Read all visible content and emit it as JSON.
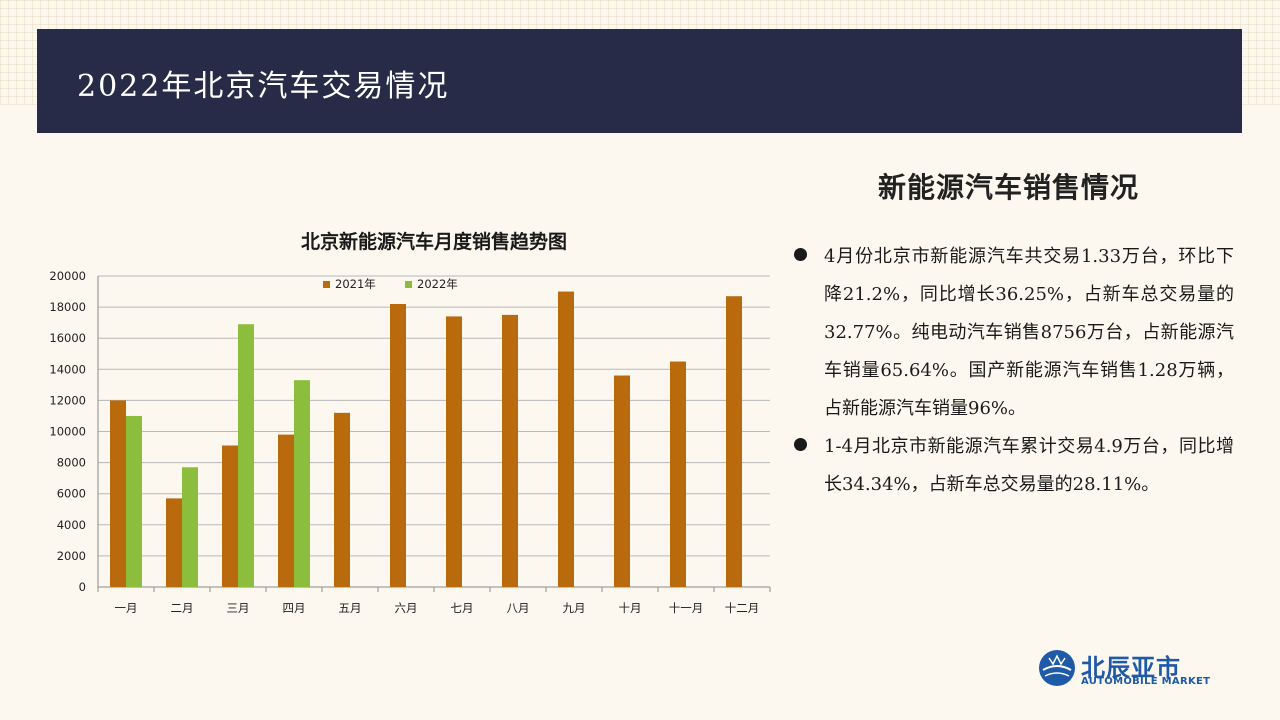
{
  "header": {
    "title": "2022年北京汽车交易情况"
  },
  "panel": {
    "title": "新能源汽车销售情况",
    "bullets": [
      "4月份北京市新能源汽车共交易1.33万台，环比下降21.2%，同比增长36.25%，占新车总交易量的32.77%。纯电动汽车销售8756万台，占新能源汽车销量65.64%。国产新能源汽车销售1.28万辆，占新能源汽车销量96%。",
      "1-4月北京市新能源汽车累计交易4.9万台，同比增长34.34%，占新车总交易量的28.11%。"
    ]
  },
  "logo": {
    "name": "北辰亚市",
    "subtitle": "AUTOMOBILE MARKET",
    "icon": "globe-car-icon"
  },
  "chart_data": {
    "type": "bar",
    "title": "北京新能源汽车月度销售趋势图",
    "categories": [
      "一月",
      "二月",
      "三月",
      "四月",
      "五月",
      "六月",
      "七月",
      "八月",
      "九月",
      "十月",
      "十一月",
      "十二月"
    ],
    "series": [
      {
        "name": "2021年",
        "color": "#b86a0d",
        "values": [
          12000,
          5700,
          9100,
          9800,
          11200,
          18200,
          17400,
          17500,
          19000,
          13600,
          14500,
          18700
        ]
      },
      {
        "name": "2022年",
        "color": "#8cbd3c",
        "values": [
          11000,
          7700,
          16900,
          13300,
          null,
          null,
          null,
          null,
          null,
          null,
          null,
          null
        ]
      }
    ],
    "ylim": [
      0,
      20000
    ],
    "yticks": [
      0,
      2000,
      4000,
      6000,
      8000,
      10000,
      12000,
      14000,
      16000,
      18000,
      20000
    ],
    "legend": "top-center",
    "grid": true
  }
}
